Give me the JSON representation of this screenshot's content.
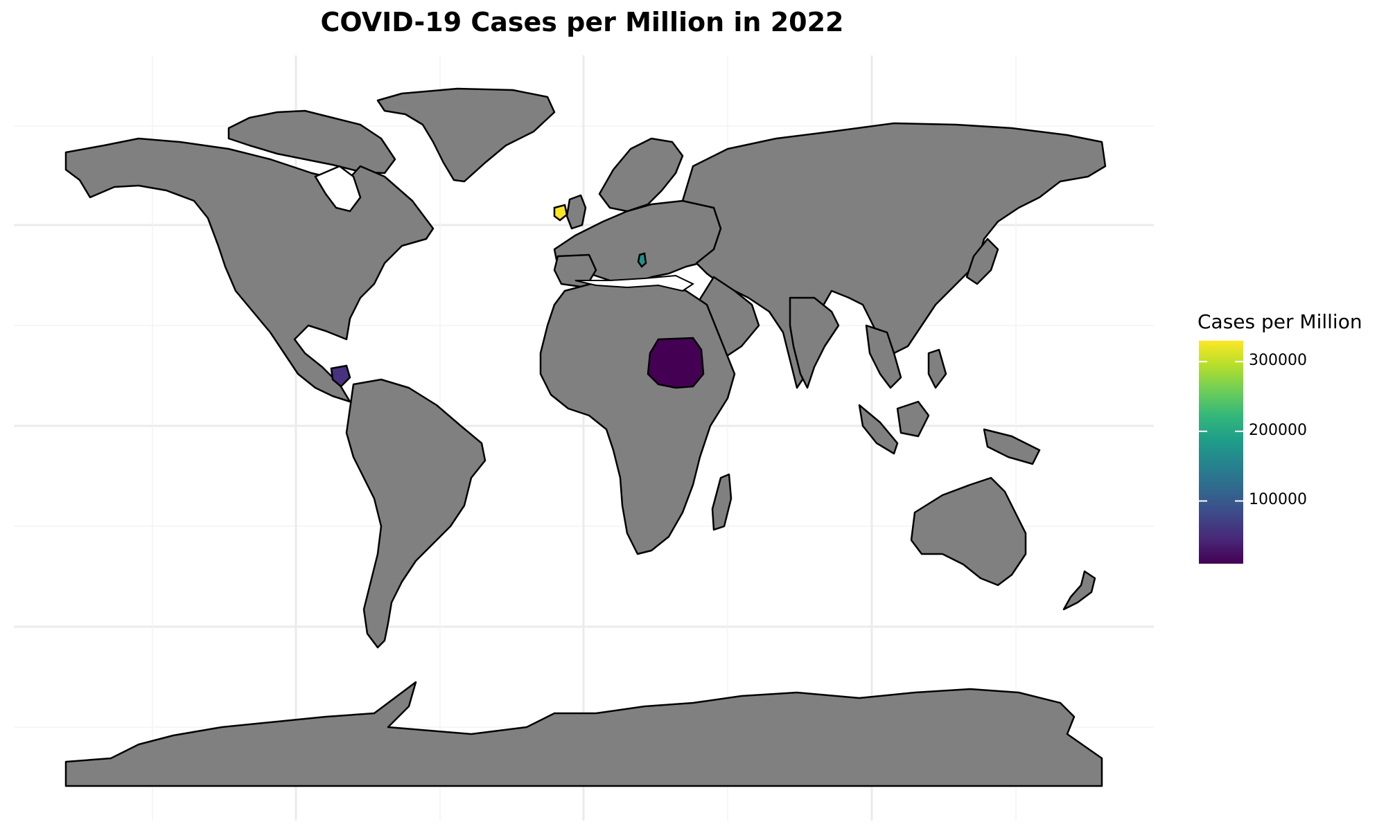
{
  "chart_data": {
    "type": "choropleth",
    "title": "COVID-19 Cases per Million in 2022",
    "projection": "equirectangular",
    "default_fill": "#808080",
    "grid": true,
    "legend": {
      "title": "Cases per Million",
      "placement": "right",
      "colormap": "viridis",
      "range": [
        10000,
        330000
      ],
      "ticks": [
        {
          "value": 300000,
          "label": "300000"
        },
        {
          "value": 200000,
          "label": "200000"
        },
        {
          "value": 100000,
          "label": "100000"
        }
      ],
      "colors": [
        "#440154",
        "#482878",
        "#3e4989",
        "#31688e",
        "#26828e",
        "#1f9e89",
        "#35b779",
        "#6ece58",
        "#b5de2b",
        "#fde725"
      ]
    },
    "highlighted": [
      {
        "region": "Ireland",
        "value": 330000,
        "color": "#fde725"
      },
      {
        "region": "Albania",
        "value": 160000,
        "color": "#21918c"
      },
      {
        "region": "Honduras",
        "value": 30000,
        "color": "#46327e"
      },
      {
        "region": "Sudan",
        "value": 10000,
        "color": "#440154"
      }
    ]
  }
}
